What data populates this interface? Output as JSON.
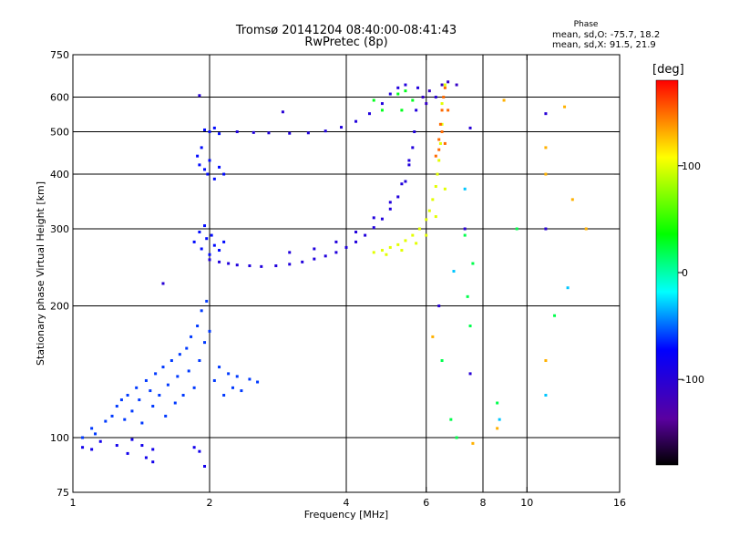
{
  "chart_data": {
    "type": "scatter",
    "title": "Tromsø 20141204 08:40:00-08:41:43",
    "subtitle": "RwPretec (8p)",
    "xlabel": "Frequency [MHz]",
    "ylabel": "Stationary phase Virtual Height [km]",
    "x_scale": "log",
    "y_scale": "log",
    "xlim": [
      1,
      16
    ],
    "ylim": [
      75,
      750
    ],
    "xticks": [
      "1",
      "2",
      "4",
      "6",
      "8",
      "10",
      "16"
    ],
    "xtick_values": [
      1,
      2,
      4,
      6,
      8,
      10,
      16
    ],
    "yticks": [
      "75",
      "100",
      "200",
      "300",
      "400",
      "500",
      "600",
      "750"
    ],
    "ytick_values": [
      75,
      100,
      200,
      300,
      400,
      500,
      600,
      750
    ],
    "gridlines_x": [
      2,
      4,
      6,
      8,
      10
    ],
    "gridlines_y": [
      100,
      200,
      300,
      400,
      500,
      600
    ],
    "phase_stats": {
      "heading": "Phase",
      "o_line": "mean, sd,O: -75.7, 18.2",
      "x_line": "mean, sd,X:  91.5, 21.9"
    },
    "colorbar": {
      "unit_label": "[deg]",
      "ticks": [
        "100",
        "0",
        "-100"
      ],
      "tick_values": [
        100,
        0,
        -100
      ],
      "range": [
        -180,
        180
      ],
      "colormap": "rainbow"
    },
    "point_groups": [
      {
        "name": "",
        "phase": -85,
        "points": [
          [
            1.05,
            95
          ],
          [
            1.1,
            94
          ],
          [
            1.15,
            98
          ],
          [
            1.25,
            96
          ],
          [
            1.32,
            92
          ],
          [
            1.35,
            99
          ],
          [
            1.42,
            96
          ],
          [
            1.45,
            90
          ],
          [
            1.5,
            94
          ],
          [
            1.5,
            88
          ],
          [
            1.85,
            95
          ],
          [
            1.9,
            93
          ],
          [
            1.95,
            86
          ]
        ]
      },
      {
        "name": "",
        "phase": -60,
        "points": [
          [
            1.05,
            100
          ],
          [
            1.1,
            105
          ],
          [
            1.12,
            102
          ],
          [
            1.18,
            109
          ],
          [
            1.22,
            112
          ],
          [
            1.25,
            118
          ],
          [
            1.28,
            122
          ],
          [
            1.3,
            110
          ],
          [
            1.32,
            125
          ],
          [
            1.35,
            115
          ],
          [
            1.38,
            130
          ],
          [
            1.4,
            122
          ],
          [
            1.42,
            108
          ],
          [
            1.45,
            135
          ],
          [
            1.48,
            128
          ],
          [
            1.5,
            118
          ],
          [
            1.52,
            140
          ],
          [
            1.55,
            125
          ],
          [
            1.58,
            145
          ],
          [
            1.6,
            112
          ],
          [
            1.62,
            132
          ],
          [
            1.65,
            150
          ],
          [
            1.68,
            120
          ],
          [
            1.7,
            138
          ],
          [
            1.72,
            155
          ],
          [
            1.75,
            125
          ],
          [
            1.78,
            160
          ],
          [
            1.8,
            142
          ],
          [
            1.82,
            170
          ],
          [
            1.85,
            130
          ],
          [
            1.88,
            180
          ],
          [
            1.9,
            150
          ],
          [
            1.92,
            195
          ],
          [
            1.95,
            165
          ],
          [
            1.97,
            205
          ],
          [
            2.0,
            175
          ],
          [
            2.05,
            135
          ],
          [
            2.1,
            145
          ],
          [
            2.15,
            125
          ],
          [
            2.2,
            140
          ],
          [
            2.25,
            130
          ],
          [
            2.3,
            138
          ],
          [
            2.35,
            128
          ],
          [
            2.45,
            136
          ],
          [
            2.55,
            134
          ]
        ]
      },
      {
        "name": "",
        "phase": -70,
        "points": [
          [
            1.85,
            280
          ],
          [
            1.9,
            295
          ],
          [
            1.92,
            270
          ],
          [
            1.95,
            305
          ],
          [
            1.97,
            285
          ],
          [
            2.0,
            262
          ],
          [
            2.02,
            290
          ],
          [
            2.05,
            275
          ],
          [
            2.1,
            268
          ],
          [
            2.15,
            280
          ],
          [
            1.88,
            440
          ],
          [
            1.9,
            420
          ],
          [
            1.92,
            460
          ],
          [
            1.95,
            410
          ],
          [
            1.98,
            400
          ],
          [
            2.0,
            430
          ],
          [
            2.05,
            390
          ],
          [
            2.1,
            415
          ],
          [
            2.15,
            400
          ],
          [
            1.95,
            505
          ],
          [
            2.0,
            500
          ],
          [
            2.05,
            510
          ],
          [
            2.1,
            495
          ]
        ]
      },
      {
        "name": "",
        "phase": -95,
        "points": [
          [
            2.0,
            255
          ],
          [
            2.1,
            252
          ],
          [
            2.2,
            250
          ],
          [
            2.3,
            248
          ],
          [
            2.45,
            247
          ],
          [
            2.6,
            246
          ],
          [
            2.8,
            247
          ],
          [
            3.0,
            249
          ],
          [
            3.2,
            252
          ],
          [
            3.4,
            256
          ],
          [
            3.6,
            260
          ],
          [
            3.8,
            265
          ],
          [
            4.0,
            272
          ],
          [
            4.2,
            280
          ],
          [
            4.4,
            290
          ],
          [
            4.6,
            302
          ],
          [
            4.8,
            316
          ],
          [
            5.0,
            333
          ],
          [
            5.2,
            355
          ],
          [
            5.4,
            385
          ],
          [
            5.5,
            420
          ],
          [
            5.6,
            460
          ],
          [
            5.65,
            500
          ],
          [
            5.7,
            560
          ],
          [
            5.75,
            630
          ],
          [
            2.3,
            500
          ],
          [
            2.5,
            498
          ],
          [
            2.7,
            497
          ],
          [
            3.0,
            496
          ],
          [
            3.3,
            497
          ],
          [
            3.6,
            502
          ],
          [
            3.9,
            512
          ],
          [
            4.2,
            528
          ],
          [
            4.5,
            550
          ],
          [
            4.8,
            580
          ],
          [
            5.0,
            610
          ],
          [
            5.2,
            630
          ],
          [
            5.4,
            640
          ],
          [
            3.0,
            265
          ],
          [
            3.4,
            270
          ],
          [
            3.8,
            280
          ],
          [
            4.2,
            295
          ],
          [
            4.6,
            318
          ],
          [
            5.0,
            345
          ],
          [
            5.3,
            380
          ],
          [
            5.5,
            430
          ]
        ]
      },
      {
        "name": "",
        "phase": 100,
        "points": [
          [
            4.6,
            265
          ],
          [
            4.8,
            268
          ],
          [
            5.0,
            272
          ],
          [
            5.2,
            276
          ],
          [
            5.4,
            282
          ],
          [
            5.6,
            290
          ],
          [
            5.8,
            300
          ],
          [
            6.0,
            315
          ],
          [
            6.1,
            330
          ],
          [
            6.2,
            350
          ],
          [
            6.3,
            375
          ],
          [
            6.35,
            400
          ],
          [
            6.4,
            430
          ],
          [
            6.45,
            470
          ],
          [
            6.5,
            520
          ],
          [
            6.5,
            580
          ],
          [
            6.6,
            640
          ],
          [
            4.9,
            262
          ],
          [
            5.3,
            268
          ],
          [
            5.7,
            278
          ],
          [
            6.0,
            290
          ],
          [
            6.3,
            320
          ],
          [
            6.6,
            370
          ]
        ]
      },
      {
        "name": "",
        "phase": 150,
        "points": [
          [
            6.3,
            440
          ],
          [
            6.4,
            480
          ],
          [
            6.45,
            520
          ],
          [
            6.5,
            560
          ],
          [
            6.55,
            600
          ],
          [
            6.6,
            630
          ],
          [
            6.7,
            560
          ],
          [
            6.6,
            470
          ],
          [
            6.5,
            500
          ],
          [
            6.4,
            455
          ]
        ]
      },
      {
        "name": "",
        "phase": -110,
        "points": [
          [
            6.5,
            640
          ],
          [
            6.7,
            650
          ],
          [
            7.0,
            640
          ],
          [
            5.9,
            600
          ],
          [
            6.0,
            580
          ],
          [
            6.1,
            620
          ]
        ]
      },
      {
        "name": "",
        "phase": 30,
        "points": [
          [
            5.2,
            610
          ],
          [
            5.4,
            620
          ],
          [
            5.6,
            590
          ],
          [
            5.3,
            560
          ],
          [
            4.8,
            560
          ],
          [
            4.6,
            590
          ]
        ]
      },
      {
        "name": "",
        "phase": 20,
        "points": [
          [
            6.5,
            150
          ],
          [
            6.8,
            110
          ],
          [
            7.0,
            100
          ],
          [
            7.4,
            210
          ],
          [
            7.5,
            180
          ],
          [
            8.6,
            120
          ],
          [
            9.5,
            300
          ],
          [
            11.5,
            190
          ],
          [
            7.6,
            250
          ],
          [
            7.3,
            290
          ]
        ]
      },
      {
        "name": "",
        "phase": 130,
        "points": [
          [
            6.2,
            170
          ],
          [
            7.6,
            97
          ],
          [
            8.9,
            590
          ],
          [
            11.0,
            460
          ],
          [
            11.0,
            400
          ],
          [
            12.1,
            570
          ],
          [
            12.6,
            350
          ],
          [
            13.5,
            300
          ],
          [
            11.0,
            150
          ],
          [
            8.6,
            105
          ]
        ]
      },
      {
        "name": "",
        "phase": -100,
        "points": [
          [
            1.9,
            605
          ],
          [
            2.9,
            555
          ],
          [
            1.58,
            225
          ],
          [
            6.4,
            200
          ],
          [
            7.5,
            140
          ],
          [
            7.3,
            300
          ],
          [
            11.0,
            550
          ],
          [
            11.0,
            300
          ],
          [
            7.5,
            510
          ],
          [
            6.3,
            600
          ]
        ]
      },
      {
        "name": "",
        "phase": -30,
        "points": [
          [
            8.7,
            110
          ],
          [
            11.0,
            125
          ],
          [
            12.3,
            220
          ],
          [
            7.3,
            370
          ],
          [
            6.9,
            240
          ]
        ]
      }
    ]
  }
}
